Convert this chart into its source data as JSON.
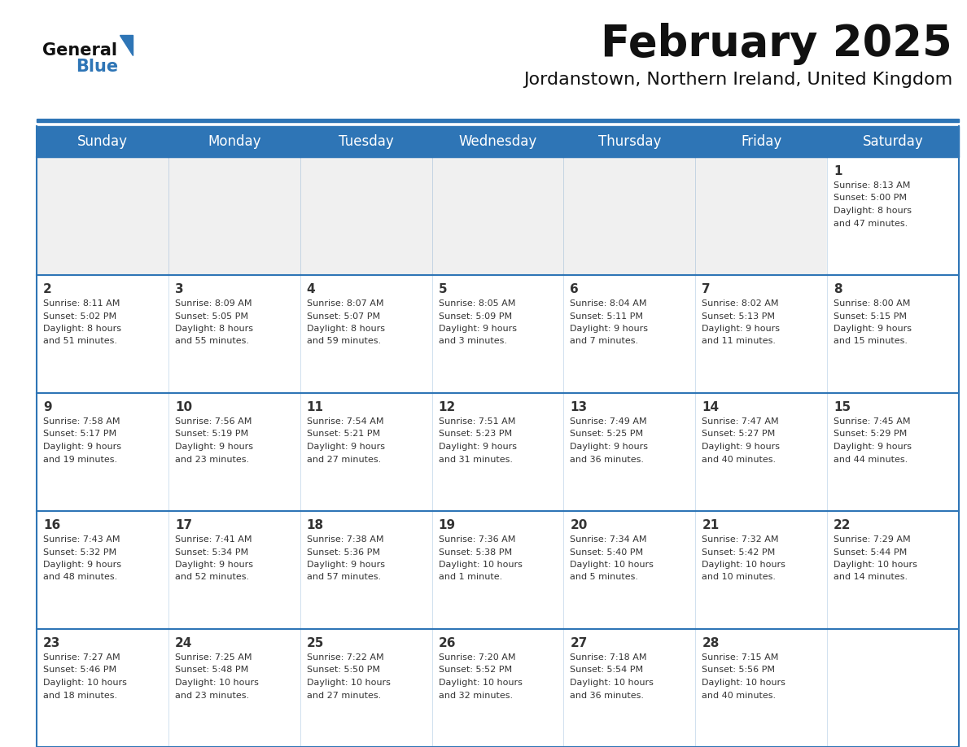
{
  "title": "February 2025",
  "subtitle": "Jordanstown, Northern Ireland, United Kingdom",
  "header_color": "#2E75B6",
  "header_text_color": "#FFFFFF",
  "cell_bg_white": "#FFFFFF",
  "cell_bg_gray": "#F0F0F0",
  "border_color": "#2E75B6",
  "text_color": "#333333",
  "day_headers": [
    "Sunday",
    "Monday",
    "Tuesday",
    "Wednesday",
    "Thursday",
    "Friday",
    "Saturday"
  ],
  "calendar_data": [
    [
      null,
      null,
      null,
      null,
      null,
      null,
      {
        "day": "1",
        "sunrise": "8:13 AM",
        "sunset": "5:00 PM",
        "daylight1": "8 hours",
        "daylight2": "and 47 minutes."
      }
    ],
    [
      {
        "day": "2",
        "sunrise": "8:11 AM",
        "sunset": "5:02 PM",
        "daylight1": "8 hours",
        "daylight2": "and 51 minutes."
      },
      {
        "day": "3",
        "sunrise": "8:09 AM",
        "sunset": "5:05 PM",
        "daylight1": "8 hours",
        "daylight2": "and 55 minutes."
      },
      {
        "day": "4",
        "sunrise": "8:07 AM",
        "sunset": "5:07 PM",
        "daylight1": "8 hours",
        "daylight2": "and 59 minutes."
      },
      {
        "day": "5",
        "sunrise": "8:05 AM",
        "sunset": "5:09 PM",
        "daylight1": "9 hours",
        "daylight2": "and 3 minutes."
      },
      {
        "day": "6",
        "sunrise": "8:04 AM",
        "sunset": "5:11 PM",
        "daylight1": "9 hours",
        "daylight2": "and 7 minutes."
      },
      {
        "day": "7",
        "sunrise": "8:02 AM",
        "sunset": "5:13 PM",
        "daylight1": "9 hours",
        "daylight2": "and 11 minutes."
      },
      {
        "day": "8",
        "sunrise": "8:00 AM",
        "sunset": "5:15 PM",
        "daylight1": "9 hours",
        "daylight2": "and 15 minutes."
      }
    ],
    [
      {
        "day": "9",
        "sunrise": "7:58 AM",
        "sunset": "5:17 PM",
        "daylight1": "9 hours",
        "daylight2": "and 19 minutes."
      },
      {
        "day": "10",
        "sunrise": "7:56 AM",
        "sunset": "5:19 PM",
        "daylight1": "9 hours",
        "daylight2": "and 23 minutes."
      },
      {
        "day": "11",
        "sunrise": "7:54 AM",
        "sunset": "5:21 PM",
        "daylight1": "9 hours",
        "daylight2": "and 27 minutes."
      },
      {
        "day": "12",
        "sunrise": "7:51 AM",
        "sunset": "5:23 PM",
        "daylight1": "9 hours",
        "daylight2": "and 31 minutes."
      },
      {
        "day": "13",
        "sunrise": "7:49 AM",
        "sunset": "5:25 PM",
        "daylight1": "9 hours",
        "daylight2": "and 36 minutes."
      },
      {
        "day": "14",
        "sunrise": "7:47 AM",
        "sunset": "5:27 PM",
        "daylight1": "9 hours",
        "daylight2": "and 40 minutes."
      },
      {
        "day": "15",
        "sunrise": "7:45 AM",
        "sunset": "5:29 PM",
        "daylight1": "9 hours",
        "daylight2": "and 44 minutes."
      }
    ],
    [
      {
        "day": "16",
        "sunrise": "7:43 AM",
        "sunset": "5:32 PM",
        "daylight1": "9 hours",
        "daylight2": "and 48 minutes."
      },
      {
        "day": "17",
        "sunrise": "7:41 AM",
        "sunset": "5:34 PM",
        "daylight1": "9 hours",
        "daylight2": "and 52 minutes."
      },
      {
        "day": "18",
        "sunrise": "7:38 AM",
        "sunset": "5:36 PM",
        "daylight1": "9 hours",
        "daylight2": "and 57 minutes."
      },
      {
        "day": "19",
        "sunrise": "7:36 AM",
        "sunset": "5:38 PM",
        "daylight1": "10 hours",
        "daylight2": "and 1 minute."
      },
      {
        "day": "20",
        "sunrise": "7:34 AM",
        "sunset": "5:40 PM",
        "daylight1": "10 hours",
        "daylight2": "and 5 minutes."
      },
      {
        "day": "21",
        "sunrise": "7:32 AM",
        "sunset": "5:42 PM",
        "daylight1": "10 hours",
        "daylight2": "and 10 minutes."
      },
      {
        "day": "22",
        "sunrise": "7:29 AM",
        "sunset": "5:44 PM",
        "daylight1": "10 hours",
        "daylight2": "and 14 minutes."
      }
    ],
    [
      {
        "day": "23",
        "sunrise": "7:27 AM",
        "sunset": "5:46 PM",
        "daylight1": "10 hours",
        "daylight2": "and 18 minutes."
      },
      {
        "day": "24",
        "sunrise": "7:25 AM",
        "sunset": "5:48 PM",
        "daylight1": "10 hours",
        "daylight2": "and 23 minutes."
      },
      {
        "day": "25",
        "sunrise": "7:22 AM",
        "sunset": "5:50 PM",
        "daylight1": "10 hours",
        "daylight2": "and 27 minutes."
      },
      {
        "day": "26",
        "sunrise": "7:20 AM",
        "sunset": "5:52 PM",
        "daylight1": "10 hours",
        "daylight2": "and 32 minutes."
      },
      {
        "day": "27",
        "sunrise": "7:18 AM",
        "sunset": "5:54 PM",
        "daylight1": "10 hours",
        "daylight2": "and 36 minutes."
      },
      {
        "day": "28",
        "sunrise": "7:15 AM",
        "sunset": "5:56 PM",
        "daylight1": "10 hours",
        "daylight2": "and 40 minutes."
      },
      null
    ]
  ],
  "figsize": [
    11.88,
    9.18
  ],
  "dpi": 100
}
